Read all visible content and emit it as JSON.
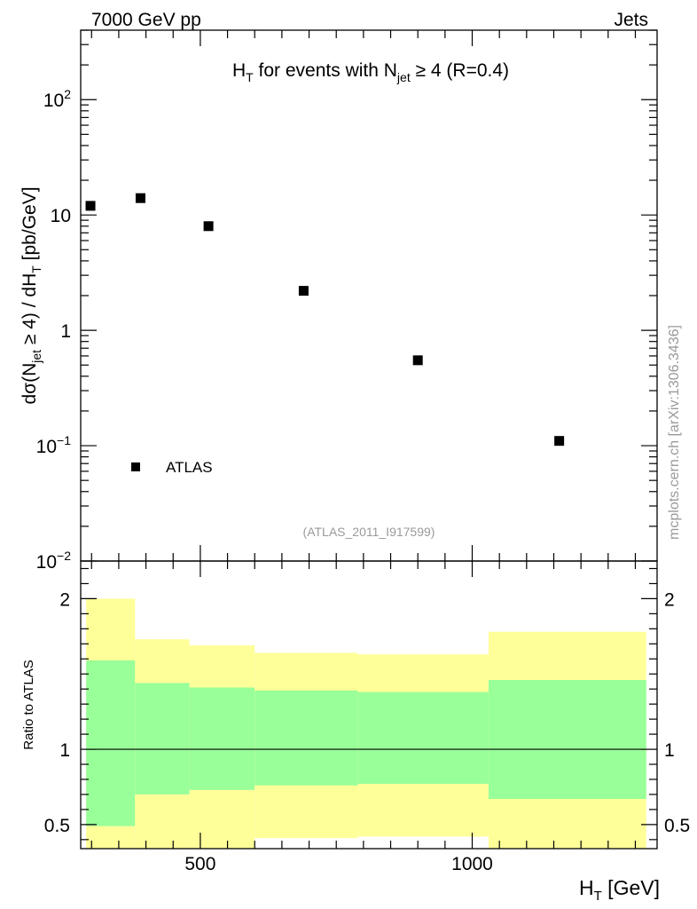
{
  "header": {
    "energy_label": "7000 GeV pp",
    "observable_label": "Jets"
  },
  "side_label": "mcplots.cern.ch [arXiv:1306.3436]",
  "analysis_label": "(ATLAS_2011_I917599)",
  "chart_data": [
    {
      "type": "scatter",
      "title": "H_T for events with N_jet ≥ 4 (R=0.4)",
      "title_parts": {
        "h": "H",
        "t_sub": "T",
        "middle": " for events with N",
        "jet_sub": "jet",
        "tail": " ≥ 4 (R=0.4)"
      },
      "ylabel": "dσ(N_jet ≥ 4) / dH_T [pb/GeV]",
      "ylabel_parts": {
        "a": "dσ(N",
        "jet_sub": "jet",
        "b": " ≥ 4) / dH",
        "t_sub": "T",
        "c": " [pb/GeV]"
      },
      "y_scale": "log",
      "ylim": [
        0.01,
        400
      ],
      "xlim": [
        280,
        1340
      ],
      "y_ticks": [
        {
          "value": 100,
          "base": "10",
          "exp": "2"
        },
        {
          "value": 10,
          "base": "10",
          "exp": ""
        },
        {
          "value": 1,
          "base": "1",
          "exp": ""
        },
        {
          "value": 0.1,
          "base": "10",
          "exp": "−1"
        },
        {
          "value": 0.01,
          "base": "10",
          "exp": "−2"
        }
      ],
      "legend": {
        "placement": "bottom-left",
        "label": "ATLAS"
      },
      "series": [
        {
          "name": "ATLAS",
          "points": [
            {
              "x": 298,
              "y": 12
            },
            {
              "x": 390,
              "y": 14
            },
            {
              "x": 515,
              "y": 8
            },
            {
              "x": 690,
              "y": 2.2
            },
            {
              "x": 900,
              "y": 0.55
            },
            {
              "x": 1160,
              "y": 0.11
            }
          ]
        }
      ]
    },
    {
      "type": "area",
      "ylabel": "Ratio to ATLAS",
      "xlabel": "H_T [GeV]",
      "xlabel_parts": {
        "h": "H",
        "t_sub": "T",
        "tail": " [GeV]"
      },
      "xlim": [
        280,
        1340
      ],
      "ylim": [
        0.34,
        2.25
      ],
      "x_ticks": [
        500,
        1000
      ],
      "y_ticks": [
        0.5,
        1,
        2
      ],
      "reference_line": 1,
      "bins": [
        {
          "x": [
            290,
            380
          ],
          "inner": [
            0.49,
            1.59
          ],
          "outer": [
            0.34,
            2.0
          ]
        },
        {
          "x": [
            380,
            480
          ],
          "inner": [
            0.7,
            1.44
          ],
          "outer": [
            0.34,
            1.73
          ]
        },
        {
          "x": [
            480,
            600
          ],
          "inner": [
            0.73,
            1.41
          ],
          "outer": [
            0.34,
            1.69
          ]
        },
        {
          "x": [
            600,
            790
          ],
          "inner": [
            0.76,
            1.39
          ],
          "outer": [
            0.41,
            1.64
          ]
        },
        {
          "x": [
            790,
            1030
          ],
          "inner": [
            0.77,
            1.38
          ],
          "outer": [
            0.42,
            1.63
          ]
        },
        {
          "x": [
            1030,
            1320
          ],
          "inner": [
            0.67,
            1.46
          ],
          "outer": [
            0.34,
            1.78
          ]
        }
      ],
      "band_colors": {
        "inner": "#99ff99",
        "outer": "#ffff99"
      }
    }
  ]
}
